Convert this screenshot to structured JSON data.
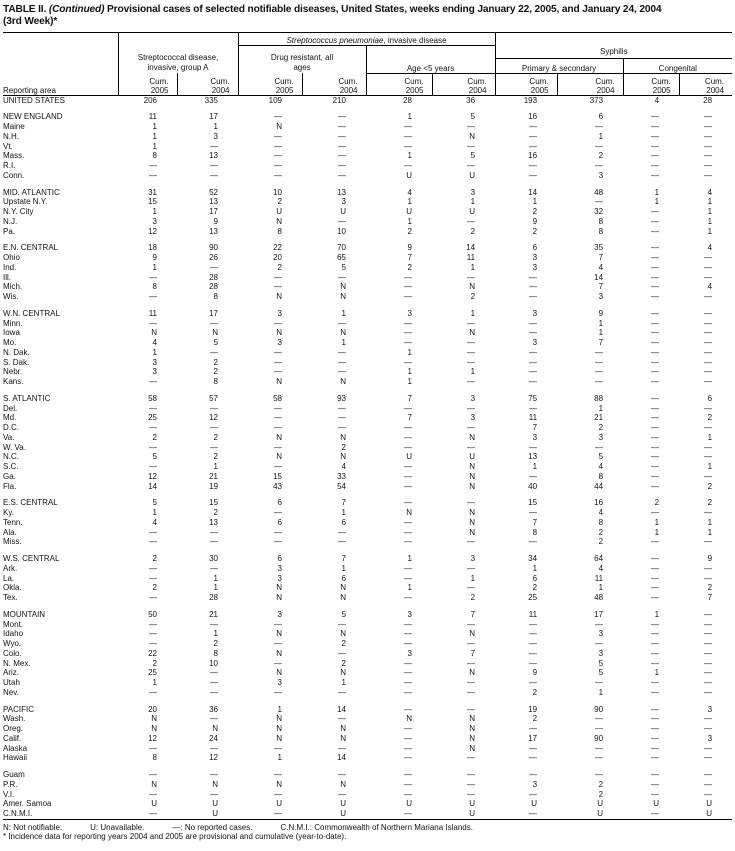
{
  "title": {
    "prefix": "TABLE II. ",
    "continued": "(Continued)",
    "text": " Provisional cases of selected notifiable diseases, United States, weeks ending January 22, 2005, and January 24, 2004",
    "line2": "(3rd Week)*"
  },
  "header": {
    "reporting_area": "Reporting area",
    "group_a": "Streptococcal disease, invasive, group A",
    "pneumo": "Streptococcus pneumoniae",
    "pneumo_suffix": ", invasive disease",
    "drug_resistant": "Drug resistant, all ages",
    "age5": "Age <5 years",
    "syphilis": "Syphilis",
    "primary": "Primary & secondary",
    "congenital": "Congenital",
    "cum": "Cum.",
    "years": [
      "2005",
      "2004",
      "2005",
      "2004",
      "2005",
      "2004",
      "2005",
      "2004",
      "2005",
      "2004"
    ]
  },
  "groups": [
    [
      [
        "UNITED STATES",
        [
          "206",
          "335",
          "109",
          "210",
          "28",
          "36",
          "193",
          "373",
          "4",
          "28"
        ]
      ]
    ],
    [
      [
        "NEW ENGLAND",
        [
          "11",
          "17",
          "—",
          "—",
          "1",
          "5",
          "16",
          "6",
          "—",
          "—"
        ]
      ],
      [
        "Maine",
        [
          "1",
          "1",
          "N",
          "—",
          "—",
          "—",
          "—",
          "—",
          "—",
          "—"
        ]
      ],
      [
        "N.H.",
        [
          "1",
          "3",
          "—",
          "—",
          "—",
          "N",
          "—",
          "1",
          "—",
          "—"
        ]
      ],
      [
        "Vt.",
        [
          "1",
          "—",
          "—",
          "—",
          "—",
          "—",
          "—",
          "—",
          "—",
          "—"
        ]
      ],
      [
        "Mass.",
        [
          "8",
          "13",
          "—",
          "—",
          "1",
          "5",
          "16",
          "2",
          "—",
          "—"
        ]
      ],
      [
        "R.I.",
        [
          "—",
          "—",
          "—",
          "—",
          "—",
          "—",
          "—",
          "—",
          "—",
          "—"
        ]
      ],
      [
        "Conn.",
        [
          "—",
          "—",
          "—",
          "—",
          "U",
          "U",
          "—",
          "3",
          "—",
          "—"
        ]
      ]
    ],
    [
      [
        "MID. ATLANTIC",
        [
          "31",
          "52",
          "10",
          "13",
          "4",
          "3",
          "14",
          "48",
          "1",
          "4"
        ]
      ],
      [
        "Upstate N.Y.",
        [
          "15",
          "13",
          "2",
          "3",
          "1",
          "1",
          "1",
          "—",
          "1",
          "1"
        ]
      ],
      [
        "N.Y. City",
        [
          "1",
          "17",
          "U",
          "U",
          "U",
          "U",
          "2",
          "32",
          "—",
          "1"
        ]
      ],
      [
        "N.J.",
        [
          "3",
          "9",
          "N",
          "—",
          "1",
          "—",
          "9",
          "8",
          "—",
          "1"
        ]
      ],
      [
        "Pa.",
        [
          "12",
          "13",
          "8",
          "10",
          "2",
          "2",
          "2",
          "8",
          "—",
          "1"
        ]
      ]
    ],
    [
      [
        "E.N. CENTRAL",
        [
          "18",
          "90",
          "22",
          "70",
          "9",
          "14",
          "6",
          "35",
          "—",
          "4"
        ]
      ],
      [
        "Ohio",
        [
          "9",
          "26",
          "20",
          "65",
          "7",
          "11",
          "3",
          "7",
          "—",
          "—"
        ]
      ],
      [
        "Ind.",
        [
          "1",
          "—",
          "2",
          "5",
          "2",
          "1",
          "3",
          "4",
          "—",
          "—"
        ]
      ],
      [
        "Ill.",
        [
          "—",
          "28",
          "—",
          "—",
          "—",
          "—",
          "—",
          "14",
          "—",
          "—"
        ]
      ],
      [
        "Mich.",
        [
          "8",
          "28",
          "—",
          "N",
          "—",
          "N",
          "—",
          "7",
          "—",
          "4"
        ]
      ],
      [
        "Wis.",
        [
          "—",
          "8",
          "N",
          "N",
          "—",
          "2",
          "—",
          "3",
          "—",
          "—"
        ]
      ]
    ],
    [
      [
        "W.N. CENTRAL",
        [
          "11",
          "17",
          "3",
          "1",
          "3",
          "1",
          "3",
          "9",
          "—",
          "—"
        ]
      ],
      [
        "Minn.",
        [
          "—",
          "—",
          "—",
          "—",
          "—",
          "—",
          "—",
          "1",
          "—",
          "—"
        ]
      ],
      [
        "Iowa",
        [
          "N",
          "N",
          "N",
          "N",
          "—",
          "N",
          "—",
          "1",
          "—",
          "—"
        ]
      ],
      [
        "Mo.",
        [
          "4",
          "5",
          "3",
          "1",
          "—",
          "—",
          "3",
          "7",
          "—",
          "—"
        ]
      ],
      [
        "N. Dak.",
        [
          "1",
          "—",
          "—",
          "—",
          "1",
          "—",
          "—",
          "—",
          "—",
          "—"
        ]
      ],
      [
        "S. Dak.",
        [
          "3",
          "2",
          "—",
          "—",
          "—",
          "—",
          "—",
          "—",
          "—",
          "—"
        ]
      ],
      [
        "Nebr.",
        [
          "3",
          "2",
          "—",
          "—",
          "1",
          "1",
          "—",
          "—",
          "—",
          "—"
        ]
      ],
      [
        "Kans.",
        [
          "—",
          "8",
          "N",
          "N",
          "1",
          "—",
          "—",
          "—",
          "—",
          "—"
        ]
      ]
    ],
    [
      [
        "S. ATLANTIC",
        [
          "58",
          "57",
          "58",
          "93",
          "7",
          "3",
          "75",
          "88",
          "—",
          "6"
        ]
      ],
      [
        "Del.",
        [
          "—",
          "—",
          "—",
          "—",
          "—",
          "—",
          "—",
          "1",
          "—",
          "—"
        ]
      ],
      [
        "Md.",
        [
          "25",
          "12",
          "—",
          "—",
          "7",
          "3",
          "11",
          "21",
          "—",
          "2"
        ]
      ],
      [
        "D.C.",
        [
          "—",
          "—",
          "—",
          "—",
          "—",
          "—",
          "7",
          "2",
          "—",
          "—"
        ]
      ],
      [
        "Va.",
        [
          "2",
          "2",
          "N",
          "N",
          "—",
          "N",
          "3",
          "3",
          "—",
          "1"
        ]
      ],
      [
        "W. Va.",
        [
          "—",
          "—",
          "—",
          "2",
          "—",
          "—",
          "—",
          "—",
          "—",
          "—"
        ]
      ],
      [
        "N.C.",
        [
          "5",
          "2",
          "N",
          "N",
          "U",
          "U",
          "13",
          "5",
          "—",
          "—"
        ]
      ],
      [
        "S.C.",
        [
          "—",
          "1",
          "—",
          "4",
          "—",
          "N",
          "1",
          "4",
          "—",
          "1"
        ]
      ],
      [
        "Ga.",
        [
          "12",
          "21",
          "15",
          "33",
          "—",
          "N",
          "—",
          "8",
          "—",
          "—"
        ]
      ],
      [
        "Fla.",
        [
          "14",
          "19",
          "43",
          "54",
          "—",
          "N",
          "40",
          "44",
          "—",
          "2"
        ]
      ]
    ],
    [
      [
        "E.S. CENTRAL",
        [
          "5",
          "15",
          "6",
          "7",
          "—",
          "—",
          "15",
          "16",
          "2",
          "2"
        ]
      ],
      [
        "Ky.",
        [
          "1",
          "2",
          "—",
          "1",
          "N",
          "N",
          "—",
          "4",
          "—",
          "—"
        ]
      ],
      [
        "Tenn.",
        [
          "4",
          "13",
          "6",
          "6",
          "—",
          "N",
          "7",
          "8",
          "1",
          "1"
        ]
      ],
      [
        "Ala.",
        [
          "—",
          "—",
          "—",
          "—",
          "—",
          "N",
          "8",
          "2",
          "1",
          "1"
        ]
      ],
      [
        "Miss.",
        [
          "—",
          "—",
          "—",
          "—",
          "—",
          "—",
          "—",
          "2",
          "—",
          "—"
        ]
      ]
    ],
    [
      [
        "W.S. CENTRAL",
        [
          "2",
          "30",
          "6",
          "7",
          "1",
          "3",
          "34",
          "64",
          "—",
          "9"
        ]
      ],
      [
        "Ark.",
        [
          "—",
          "—",
          "3",
          "1",
          "—",
          "—",
          "1",
          "4",
          "—",
          "—"
        ]
      ],
      [
        "La.",
        [
          "—",
          "1",
          "3",
          "6",
          "—",
          "1",
          "6",
          "11",
          "—",
          "—"
        ]
      ],
      [
        "Okla.",
        [
          "2",
          "1",
          "N",
          "N",
          "1",
          "—",
          "2",
          "1",
          "—",
          "2"
        ]
      ],
      [
        "Tex.",
        [
          "—",
          "28",
          "N",
          "N",
          "—",
          "2",
          "25",
          "48",
          "—",
          "7"
        ]
      ]
    ],
    [
      [
        "MOUNTAIN",
        [
          "50",
          "21",
          "3",
          "5",
          "3",
          "7",
          "11",
          "17",
          "1",
          "—"
        ]
      ],
      [
        "Mont.",
        [
          "—",
          "—",
          "—",
          "—",
          "—",
          "—",
          "—",
          "—",
          "—",
          "—"
        ]
      ],
      [
        "Idaho",
        [
          "—",
          "1",
          "N",
          "N",
          "—",
          "N",
          "—",
          "3",
          "—",
          "—"
        ]
      ],
      [
        "Wyo.",
        [
          "—",
          "2",
          "—",
          "2",
          "—",
          "—",
          "—",
          "—",
          "—",
          "—"
        ]
      ],
      [
        "Colo.",
        [
          "22",
          "8",
          "N",
          "—",
          "3",
          "7",
          "—",
          "3",
          "—",
          "—"
        ]
      ],
      [
        "N. Mex.",
        [
          "2",
          "10",
          "—",
          "2",
          "—",
          "—",
          "—",
          "5",
          "—",
          "—"
        ]
      ],
      [
        "Ariz.",
        [
          "25",
          "—",
          "N",
          "N",
          "—",
          "N",
          "9",
          "5",
          "1",
          "—"
        ]
      ],
      [
        "Utah",
        [
          "1",
          "—",
          "3",
          "1",
          "—",
          "—",
          "—",
          "—",
          "—",
          "—"
        ]
      ],
      [
        "Nev.",
        [
          "—",
          "—",
          "—",
          "—",
          "—",
          "—",
          "2",
          "1",
          "—",
          "—"
        ]
      ]
    ],
    [
      [
        "PACIFIC",
        [
          "20",
          "36",
          "1",
          "14",
          "—",
          "—",
          "19",
          "90",
          "—",
          "3"
        ]
      ],
      [
        "Wash.",
        [
          "N",
          "—",
          "N",
          "—",
          "N",
          "N",
          "2",
          "—",
          "—",
          "—"
        ]
      ],
      [
        "Oreg.",
        [
          "N",
          "N",
          "N",
          "N",
          "—",
          "N",
          "—",
          "—",
          "—",
          "—"
        ]
      ],
      [
        "Calif.",
        [
          "12",
          "24",
          "N",
          "N",
          "—",
          "N",
          "17",
          "90",
          "—",
          "3"
        ]
      ],
      [
        "Alaska",
        [
          "—",
          "—",
          "—",
          "—",
          "—",
          "N",
          "—",
          "—",
          "—",
          "—"
        ]
      ],
      [
        "Hawaii",
        [
          "8",
          "12",
          "1",
          "14",
          "—",
          "—",
          "—",
          "—",
          "—",
          "—"
        ]
      ]
    ],
    [
      [
        "Guam",
        [
          "—",
          "—",
          "—",
          "—",
          "—",
          "—",
          "—",
          "—",
          "—",
          "—"
        ]
      ],
      [
        "P.R.",
        [
          "N",
          "N",
          "N",
          "N",
          "—",
          "—",
          "3",
          "2",
          "—",
          "—"
        ]
      ],
      [
        "V.I.",
        [
          "—",
          "—",
          "—",
          "—",
          "—",
          "—",
          "—",
          "2",
          "—",
          "—"
        ]
      ],
      [
        "Amer. Samoa",
        [
          "U",
          "U",
          "U",
          "U",
          "U",
          "U",
          "U",
          "U",
          "U",
          "U"
        ]
      ],
      [
        "C.N.M.I.",
        [
          "—",
          "U",
          "—",
          "U",
          "—",
          "U",
          "—",
          "U",
          "—",
          "U"
        ]
      ]
    ]
  ],
  "footnotes": {
    "legend": [
      "N: Not notifiable.",
      "U: Unavailable.",
      "—: No reported cases.",
      "C.N.M.I.: Commonwealth of Northern Mariana Islands."
    ],
    "asterisk": "* Incidence data for reporting years 2004 and 2005 are provisional and cumulative (year-to-date)."
  }
}
